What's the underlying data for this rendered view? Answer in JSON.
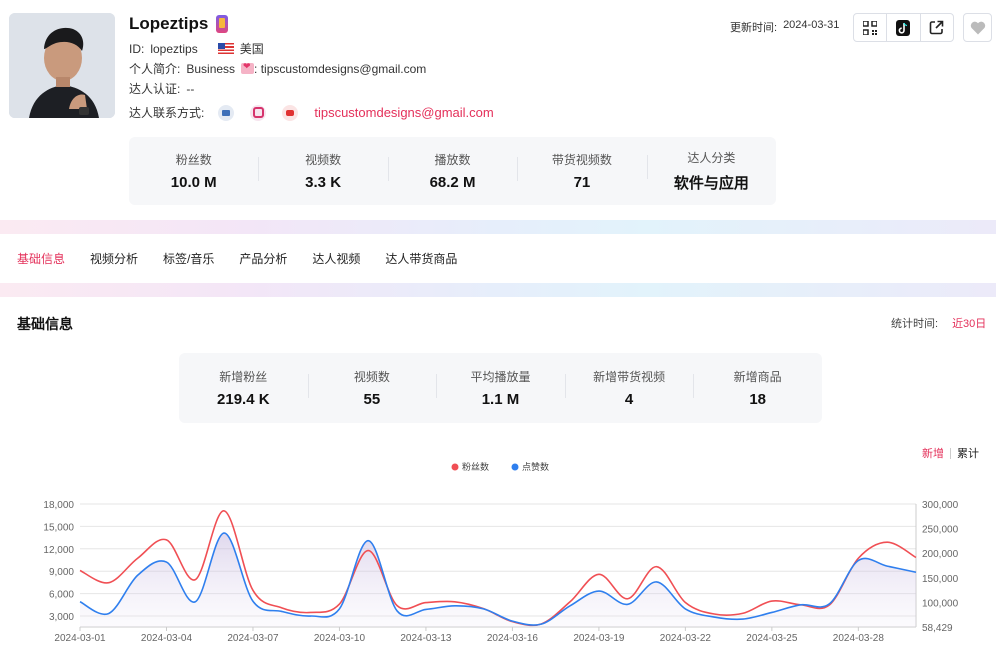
{
  "profile": {
    "name": "Lopeztips",
    "id_label": "ID:",
    "id_value": "lopeztips",
    "region": "美国",
    "bio_label": "个人简介:",
    "bio_prefix": "Business",
    "bio_suffix": ": tipscustomdesigns@gmail.com",
    "cert_label": "达人认证:",
    "cert_value": "--",
    "contact_label": "达人联系方式:",
    "contact_email": "tipscustomdesigns@gmail.com"
  },
  "update": {
    "label": "更新时间:",
    "date": "2024-03-31"
  },
  "stats": [
    {
      "label": "粉丝数",
      "value": "10.0 M"
    },
    {
      "label": "视频数",
      "value": "3.3 K"
    },
    {
      "label": "播放数",
      "value": "68.2 M"
    },
    {
      "label": "带货视频数",
      "value": "71"
    },
    {
      "label": "达人分类",
      "value": "软件与应用"
    }
  ],
  "tabs": [
    "基础信息",
    "视频分析",
    "标签/音乐",
    "产品分析",
    "达人视频",
    "达人带货商品"
  ],
  "section": {
    "title": "基础信息",
    "time_label": "统计时间:",
    "time_value": "近30日"
  },
  "metrics": [
    {
      "label": "新增粉丝",
      "value": "219.4 K"
    },
    {
      "label": "视频数",
      "value": "55"
    },
    {
      "label": "平均播放量",
      "value": "1.1 M"
    },
    {
      "label": "新增带货视频",
      "value": "4"
    },
    {
      "label": "新增商品",
      "value": "18"
    }
  ],
  "toggle": {
    "new": "新增",
    "total": "累计"
  },
  "colors": {
    "accent": "#e4305a",
    "fans": "#f04f54",
    "likes": "#2f7fee"
  },
  "chart_data": {
    "type": "line",
    "x": [
      "2024-03-01",
      "2024-03-02",
      "2024-03-03",
      "2024-03-04",
      "2024-03-05",
      "2024-03-06",
      "2024-03-07",
      "2024-03-08",
      "2024-03-09",
      "2024-03-10",
      "2024-03-11",
      "2024-03-12",
      "2024-03-13",
      "2024-03-14",
      "2024-03-15",
      "2024-03-16",
      "2024-03-17",
      "2024-03-18",
      "2024-03-19",
      "2024-03-20",
      "2024-03-21",
      "2024-03-22",
      "2024-03-23",
      "2024-03-24",
      "2024-03-25",
      "2024-03-26",
      "2024-03-27",
      "2024-03-28",
      "2024-03-29",
      "2024-03-30"
    ],
    "x_ticks": [
      "2024-03-01",
      "2024-03-04",
      "2024-03-07",
      "2024-03-10",
      "2024-03-13",
      "2024-03-16",
      "2024-03-19",
      "2024-03-22",
      "2024-03-25",
      "2024-03-28"
    ],
    "y_left_ticks": [
      "18,000",
      "15,000",
      "12,000",
      "9,000",
      "6,000",
      "3,000"
    ],
    "y_right_ticks": [
      "300,000",
      "250,000",
      "200,000",
      "150,000",
      "100,000",
      "58,429"
    ],
    "ylim_left": [
      1900,
      18000
    ],
    "ylim_right": [
      58429,
      300000
    ],
    "grid": true,
    "legend_position": "top-center",
    "series": [
      {
        "name": "粉丝数",
        "axis": "left",
        "values": [
          9300,
          7700,
          10900,
          13300,
          8100,
          17100,
          6700,
          4400,
          3800,
          4900,
          11900,
          4700,
          5100,
          5200,
          4300,
          2600,
          2300,
          5200,
          8800,
          5600,
          9800,
          5100,
          3600,
          3700,
          5300,
          4800,
          4800,
          10900,
          13000,
          11000
        ]
      },
      {
        "name": "点赞数",
        "axis": "right",
        "values": [
          108000,
          85000,
          160000,
          186000,
          108000,
          243000,
          109000,
          89000,
          80000,
          94000,
          228000,
          90000,
          93000,
          100000,
          94000,
          70000,
          64000,
          100000,
          129000,
          103000,
          147000,
          94000,
          78000,
          74000,
          87000,
          102000,
          104000,
          189000,
          178000,
          166000
        ]
      }
    ]
  }
}
